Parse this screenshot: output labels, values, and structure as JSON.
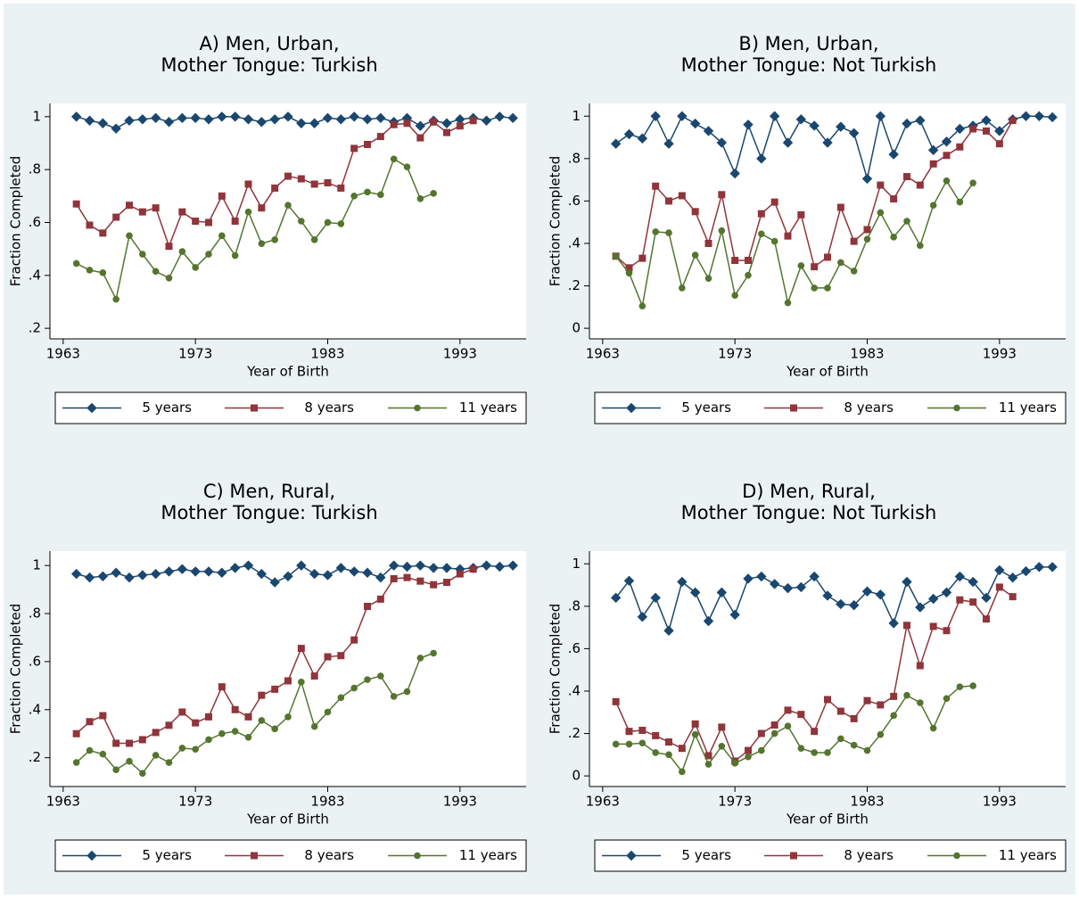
{
  "chart_data": [
    {
      "type": "line",
      "title": [
        "A) Men, Urban,",
        "Mother Tongue: Turkish"
      ],
      "x_label": "Year of Birth",
      "y_label": "Fraction Completed",
      "x": [
        1964,
        1965,
        1966,
        1967,
        1968,
        1969,
        1970,
        1971,
        1972,
        1973,
        1974,
        1975,
        1976,
        1977,
        1978,
        1979,
        1980,
        1981,
        1982,
        1983,
        1984,
        1985,
        1986,
        1987,
        1988,
        1989,
        1990,
        1991,
        1992,
        1993,
        1994,
        1995,
        1996,
        1997
      ],
      "xlim": [
        1962,
        1998
      ],
      "xticks": [
        1963,
        1973,
        1983,
        1993
      ],
      "ylim": [
        0.16,
        1.05
      ],
      "yticks": [
        {
          "value": 0.2,
          "label": ".2"
        },
        {
          "value": 0.4,
          "label": ".4"
        },
        {
          "value": 0.6,
          "label": ".6"
        },
        {
          "value": 0.8,
          "label": ".8"
        },
        1
      ],
      "grid": false,
      "legend": "bottom",
      "series": [
        {
          "name": "5 years",
          "color": "#1a476f",
          "marker": "diamond",
          "values": [
            1.0,
            0.985,
            0.975,
            0.955,
            0.985,
            0.99,
            0.995,
            0.98,
            0.995,
            0.995,
            0.99,
            1.0,
            1.0,
            0.99,
            0.98,
            0.99,
            1.0,
            0.975,
            0.975,
            0.995,
            0.99,
            1.0,
            0.99,
            0.995,
            0.98,
            0.995,
            0.965,
            0.985,
            0.975,
            0.99,
            0.995,
            0.985,
            1.0,
            0.995
          ]
        },
        {
          "name": "8 years",
          "color": "#90353b",
          "marker": "square",
          "values": [
            0.67,
            0.59,
            0.56,
            0.62,
            0.665,
            0.64,
            0.655,
            0.51,
            0.64,
            0.605,
            0.6,
            0.7,
            0.605,
            0.745,
            0.655,
            0.73,
            0.775,
            0.765,
            0.745,
            0.75,
            0.73,
            0.88,
            0.895,
            0.925,
            0.97,
            0.975,
            0.92,
            0.98,
            0.94,
            0.965,
            0.985,
            null,
            null,
            null
          ]
        },
        {
          "name": "11 years",
          "color": "#55752f",
          "marker": "circle",
          "values": [
            0.445,
            0.42,
            0.41,
            0.31,
            0.55,
            0.48,
            0.415,
            0.39,
            0.49,
            0.43,
            0.48,
            0.55,
            0.475,
            0.64,
            0.52,
            0.535,
            0.665,
            0.605,
            0.535,
            0.6,
            0.595,
            0.7,
            0.715,
            0.705,
            0.84,
            0.81,
            0.69,
            0.71,
            null,
            null,
            null,
            null,
            null,
            null
          ]
        }
      ]
    },
    {
      "type": "line",
      "title": [
        "B) Men, Urban,",
        "Mother Tongue: Not Turkish"
      ],
      "x_label": "Year of Birth",
      "y_label": "Fraction Completed",
      "x": [
        1964,
        1965,
        1966,
        1967,
        1968,
        1969,
        1970,
        1971,
        1972,
        1973,
        1974,
        1975,
        1976,
        1977,
        1978,
        1979,
        1980,
        1981,
        1982,
        1983,
        1984,
        1985,
        1986,
        1987,
        1988,
        1989,
        1990,
        1991,
        1992,
        1993,
        1994,
        1995,
        1996,
        1997
      ],
      "xlim": [
        1962,
        1998
      ],
      "xticks": [
        1963,
        1973,
        1983,
        1993
      ],
      "ylim": [
        -0.05,
        1.06
      ],
      "yticks": [
        0,
        {
          "value": 0.2,
          "label": ".2"
        },
        {
          "value": 0.4,
          "label": ".4"
        },
        {
          "value": 0.6,
          "label": ".6"
        },
        {
          "value": 0.8,
          "label": ".8"
        },
        1
      ],
      "grid": false,
      "legend": "bottom",
      "series": [
        {
          "name": "5 years",
          "color": "#1a476f",
          "marker": "diamond",
          "values": [
            0.87,
            0.915,
            0.895,
            1.0,
            0.87,
            1.0,
            0.965,
            0.93,
            0.875,
            0.73,
            0.96,
            0.8,
            1.0,
            0.875,
            0.985,
            0.955,
            0.875,
            0.95,
            0.92,
            0.705,
            1.0,
            0.82,
            0.965,
            0.98,
            0.84,
            0.88,
            0.94,
            0.955,
            0.98,
            0.93,
            0.985,
            1.0,
            1.0,
            0.995
          ]
        },
        {
          "name": "8 years",
          "color": "#90353b",
          "marker": "square",
          "values": [
            0.34,
            0.285,
            0.33,
            0.67,
            0.6,
            0.625,
            0.55,
            0.4,
            0.63,
            0.32,
            0.32,
            0.54,
            0.595,
            0.435,
            0.535,
            0.29,
            0.335,
            0.57,
            0.41,
            0.465,
            0.675,
            0.61,
            0.715,
            0.675,
            0.775,
            0.815,
            0.855,
            0.94,
            0.93,
            0.87,
            0.98,
            null,
            null,
            null
          ]
        },
        {
          "name": "11 years",
          "color": "#55752f",
          "marker": "circle",
          "values": [
            0.34,
            0.26,
            0.105,
            0.455,
            0.45,
            0.19,
            0.345,
            0.235,
            0.46,
            0.155,
            0.25,
            0.445,
            0.41,
            0.12,
            0.295,
            0.19,
            0.19,
            0.31,
            0.27,
            0.42,
            0.545,
            0.43,
            0.505,
            0.39,
            0.58,
            0.695,
            0.595,
            0.685,
            null,
            null,
            null,
            null,
            null,
            null
          ]
        }
      ]
    },
    {
      "type": "line",
      "title": [
        "C) Men, Rural,",
        "Mother Tongue: Turkish"
      ],
      "x_label": "Year of Birth",
      "y_label": "Fraction Completed",
      "x": [
        1964,
        1965,
        1966,
        1967,
        1968,
        1969,
        1970,
        1971,
        1972,
        1973,
        1974,
        1975,
        1976,
        1977,
        1978,
        1979,
        1980,
        1981,
        1982,
        1983,
        1984,
        1985,
        1986,
        1987,
        1988,
        1989,
        1990,
        1991,
        1992,
        1993,
        1994,
        1995,
        1996,
        1997
      ],
      "xlim": [
        1962,
        1998
      ],
      "xticks": [
        1963,
        1973,
        1983,
        1993
      ],
      "ylim": [
        0.08,
        1.06
      ],
      "yticks": [
        {
          "value": 0.2,
          "label": ".2"
        },
        {
          "value": 0.4,
          "label": ".4"
        },
        {
          "value": 0.6,
          "label": ".6"
        },
        {
          "value": 0.8,
          "label": ".8"
        },
        1
      ],
      "grid": false,
      "legend": "bottom",
      "series": [
        {
          "name": "5 years",
          "color": "#1a476f",
          "marker": "diamond",
          "values": [
            0.965,
            0.95,
            0.955,
            0.97,
            0.95,
            0.96,
            0.965,
            0.975,
            0.985,
            0.975,
            0.975,
            0.97,
            0.99,
            1.0,
            0.965,
            0.93,
            0.955,
            1.0,
            0.965,
            0.96,
            0.99,
            0.975,
            0.97,
            0.95,
            1.0,
            0.995,
            1.0,
            0.99,
            0.99,
            0.985,
            0.99,
            1.0,
            0.995,
            1.0
          ]
        },
        {
          "name": "8 years",
          "color": "#90353b",
          "marker": "square",
          "values": [
            0.3,
            0.35,
            0.375,
            0.26,
            0.26,
            0.275,
            0.305,
            0.335,
            0.39,
            0.345,
            0.37,
            0.495,
            0.4,
            0.37,
            0.46,
            0.485,
            0.52,
            0.655,
            0.54,
            0.62,
            0.625,
            0.69,
            0.83,
            0.86,
            0.945,
            0.95,
            0.935,
            0.92,
            0.93,
            0.965,
            0.985,
            null,
            null,
            null
          ]
        },
        {
          "name": "11 years",
          "color": "#55752f",
          "marker": "circle",
          "values": [
            0.18,
            0.23,
            0.215,
            0.15,
            0.185,
            0.135,
            0.21,
            0.18,
            0.24,
            0.235,
            0.275,
            0.3,
            0.31,
            0.285,
            0.355,
            0.32,
            0.37,
            0.515,
            0.33,
            0.39,
            0.45,
            0.49,
            0.525,
            0.54,
            0.455,
            0.475,
            0.615,
            0.635,
            null,
            null,
            null,
            null,
            null,
            null
          ]
        }
      ]
    },
    {
      "type": "line",
      "title": [
        "D) Men, Rural,",
        "Mother Tongue: Not Turkish"
      ],
      "x_label": "Year of Birth",
      "y_label": "Fraction Completed",
      "x": [
        1964,
        1965,
        1966,
        1967,
        1968,
        1969,
        1970,
        1971,
        1972,
        1973,
        1974,
        1975,
        1976,
        1977,
        1978,
        1979,
        1980,
        1981,
        1982,
        1983,
        1984,
        1985,
        1986,
        1987,
        1988,
        1989,
        1990,
        1991,
        1992,
        1993,
        1994,
        1995,
        1996,
        1997
      ],
      "xlim": [
        1962,
        1998
      ],
      "xticks": [
        1963,
        1973,
        1983,
        1993
      ],
      "ylim": [
        -0.05,
        1.06
      ],
      "yticks": [
        0,
        {
          "value": 0.2,
          "label": ".2"
        },
        {
          "value": 0.4,
          "label": ".4"
        },
        {
          "value": 0.6,
          "label": ".6"
        },
        {
          "value": 0.8,
          "label": ".8"
        },
        1
      ],
      "grid": false,
      "legend": "bottom",
      "series": [
        {
          "name": "5 years",
          "color": "#1a476f",
          "marker": "diamond",
          "values": [
            0.84,
            0.92,
            0.75,
            0.84,
            0.685,
            0.915,
            0.865,
            0.73,
            0.865,
            0.76,
            0.93,
            0.94,
            0.905,
            0.885,
            0.89,
            0.94,
            0.85,
            0.81,
            0.805,
            0.87,
            0.855,
            0.72,
            0.915,
            0.795,
            0.835,
            0.865,
            0.94,
            0.915,
            0.84,
            0.97,
            0.935,
            0.965,
            0.985,
            0.985
          ]
        },
        {
          "name": "8 years",
          "color": "#90353b",
          "marker": "square",
          "values": [
            0.35,
            0.21,
            0.215,
            0.19,
            0.16,
            0.13,
            0.245,
            0.095,
            0.23,
            0.07,
            0.12,
            0.2,
            0.24,
            0.31,
            0.29,
            0.21,
            0.36,
            0.305,
            0.27,
            0.355,
            0.335,
            0.375,
            0.71,
            0.52,
            0.705,
            0.685,
            0.83,
            0.82,
            0.74,
            0.89,
            0.845,
            null,
            null,
            null
          ]
        },
        {
          "name": "11 years",
          "color": "#55752f",
          "marker": "circle",
          "values": [
            0.15,
            0.15,
            0.155,
            0.11,
            0.1,
            0.02,
            0.195,
            0.055,
            0.14,
            0.06,
            0.09,
            0.12,
            0.2,
            0.235,
            0.13,
            0.11,
            0.11,
            0.175,
            0.145,
            0.12,
            0.195,
            0.285,
            0.38,
            0.345,
            0.225,
            0.365,
            0.42,
            0.425,
            null,
            null,
            null,
            null,
            null,
            null
          ]
        }
      ]
    }
  ]
}
